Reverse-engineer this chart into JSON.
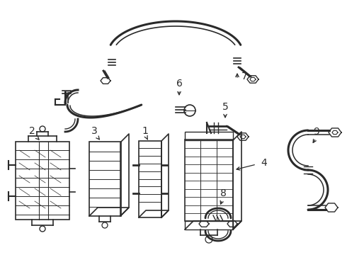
{
  "background": "#ffffff",
  "line_color": "#2a2a2a",
  "fig_width": 4.9,
  "fig_height": 3.6,
  "dpi": 100,
  "xlim": [
    0,
    490
  ],
  "ylim": [
    0,
    360
  ]
}
